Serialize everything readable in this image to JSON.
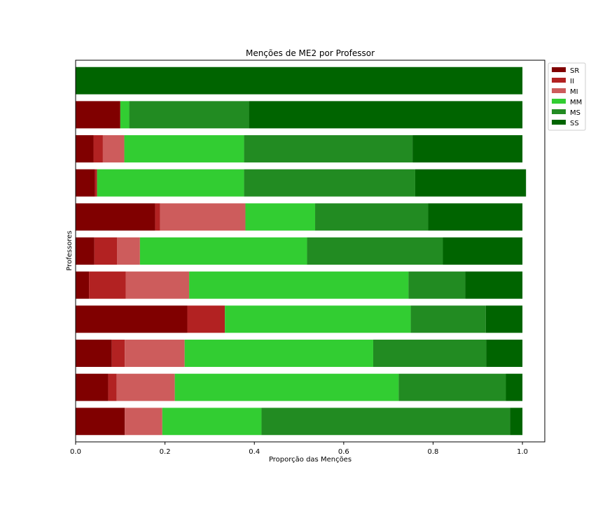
{
  "chart_data": {
    "type": "bar",
    "orientation": "horizontal",
    "stacked": true,
    "title": "Menções de ME2 por Professor",
    "xlabel": "Proporção das Menções",
    "ylabel": "Professores",
    "xlim": [
      0,
      1.05
    ],
    "xticks": [
      "0.0",
      "0.2",
      "0.4",
      "0.6",
      "0.8",
      "1.0"
    ],
    "xtick_values": [
      0,
      0.2,
      0.4,
      0.6,
      0.8,
      1.0
    ],
    "categories": [
      "",
      "",
      "",
      "",
      "",
      "",
      "",
      "",
      "",
      "",
      ""
    ],
    "grid": false,
    "legend_position": "top-right",
    "series": [
      {
        "name": "SR",
        "color": "#800000",
        "values": [
          0.11,
          0.073,
          0.081,
          0.25,
          0.03,
          0.042,
          0.178,
          0.043,
          0.04,
          0.1,
          0.0
        ]
      },
      {
        "name": "II",
        "color": "#b22222",
        "values": [
          0.0,
          0.019,
          0.029,
          0.084,
          0.082,
          0.051,
          0.011,
          0.005,
          0.021,
          0.0,
          0.0
        ]
      },
      {
        "name": "MI",
        "color": "#cd5c5c",
        "values": [
          0.084,
          0.13,
          0.134,
          0.0,
          0.142,
          0.051,
          0.191,
          0.0,
          0.048,
          0.0,
          0.0
        ]
      },
      {
        "name": "MM",
        "color": "#32cd32",
        "values": [
          0.222,
          0.501,
          0.422,
          0.416,
          0.491,
          0.374,
          0.156,
          0.329,
          0.268,
          0.02,
          0.0
        ]
      },
      {
        "name": "MS",
        "color": "#228b22",
        "values": [
          0.556,
          0.24,
          0.253,
          0.168,
          0.127,
          0.304,
          0.253,
          0.383,
          0.377,
          0.268,
          0.0
        ]
      },
      {
        "name": "SS",
        "color": "#006400",
        "values": [
          0.028,
          0.037,
          0.081,
          0.082,
          0.128,
          0.178,
          0.211,
          0.248,
          0.246,
          0.612,
          1.0
        ]
      }
    ]
  }
}
